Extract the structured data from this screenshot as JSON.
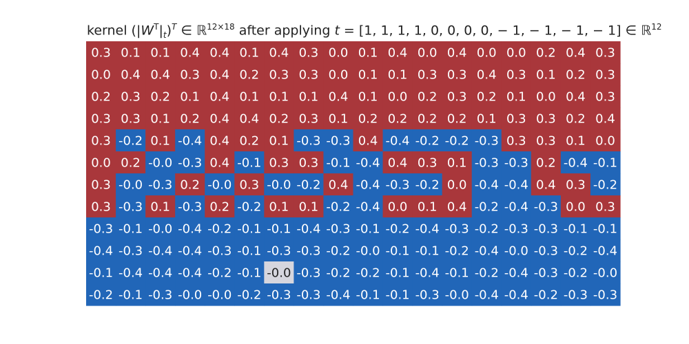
{
  "chart_data": {
    "type": "heatmap",
    "title_parts": {
      "prefix": "kernel (|",
      "w": "W",
      "w_sup": "T",
      "bar_sub": "t",
      "close": ")",
      "outer_sup": "T",
      "in1": " ∈ ",
      "R1": "ℝ",
      "dims": "12×18",
      "after": " after applying ",
      "t": "t",
      "eq": " = [1, 1, 1, 1, 0, 0, 0, 0, − 1, − 1, − 1, − 1] ∈ ",
      "R2": "ℝ",
      "dim2": "12"
    },
    "rows": 12,
    "cols": 18,
    "values": [
      [
        "0.3",
        "0.1",
        "0.1",
        "0.4",
        "0.4",
        "0.1",
        "0.4",
        "0.3",
        "0.0",
        "0.1",
        "0.4",
        "0.0",
        "0.4",
        "0.0",
        "0.0",
        "0.2",
        "0.4",
        "0.3"
      ],
      [
        "0.0",
        "0.4",
        "0.4",
        "0.3",
        "0.4",
        "0.2",
        "0.3",
        "0.3",
        "0.0",
        "0.1",
        "0.1",
        "0.3",
        "0.3",
        "0.4",
        "0.3",
        "0.1",
        "0.2",
        "0.3"
      ],
      [
        "0.2",
        "0.3",
        "0.2",
        "0.1",
        "0.4",
        "0.1",
        "0.1",
        "0.1",
        "0.4",
        "0.1",
        "0.0",
        "0.2",
        "0.3",
        "0.2",
        "0.1",
        "0.0",
        "0.4",
        "0.3"
      ],
      [
        "0.3",
        "0.3",
        "0.1",
        "0.2",
        "0.4",
        "0.4",
        "0.2",
        "0.3",
        "0.1",
        "0.2",
        "0.2",
        "0.2",
        "0.2",
        "0.1",
        "0.3",
        "0.3",
        "0.2",
        "0.4"
      ],
      [
        "0.3",
        "-0.2",
        "0.1",
        "-0.4",
        "0.4",
        "0.2",
        "0.1",
        "-0.3",
        "-0.3",
        "0.4",
        "-0.4",
        "-0.2",
        "-0.2",
        "-0.3",
        "0.3",
        "0.3",
        "0.1",
        "0.0"
      ],
      [
        "0.0",
        "0.2",
        "-0.0",
        "-0.3",
        "0.4",
        "-0.1",
        "0.3",
        "0.3",
        "-0.1",
        "-0.4",
        "0.4",
        "0.3",
        "0.1",
        "-0.3",
        "-0.3",
        "0.2",
        "-0.4",
        "-0.1"
      ],
      [
        "0.3",
        "-0.0",
        "-0.3",
        "0.2",
        "-0.0",
        "0.3",
        "-0.0",
        "-0.2",
        "0.4",
        "-0.4",
        "-0.3",
        "-0.2",
        "0.0",
        "-0.4",
        "-0.4",
        "0.4",
        "0.3",
        "-0.2"
      ],
      [
        "0.3",
        "-0.3",
        "0.1",
        "-0.3",
        "0.2",
        "-0.2",
        "0.1",
        "0.1",
        "-0.2",
        "-0.4",
        "0.0",
        "0.1",
        "0.4",
        "-0.2",
        "-0.4",
        "-0.3",
        "0.0",
        "0.3"
      ],
      [
        "-0.3",
        "-0.1",
        "-0.0",
        "-0.4",
        "-0.2",
        "-0.1",
        "-0.1",
        "-0.4",
        "-0.3",
        "-0.1",
        "-0.2",
        "-0.4",
        "-0.3",
        "-0.2",
        "-0.3",
        "-0.3",
        "-0.1",
        "-0.1"
      ],
      [
        "-0.4",
        "-0.3",
        "-0.4",
        "-0.4",
        "-0.3",
        "-0.1",
        "-0.3",
        "-0.3",
        "-0.2",
        "-0.0",
        "-0.1",
        "-0.1",
        "-0.2",
        "-0.4",
        "-0.0",
        "-0.3",
        "-0.2",
        "-0.4"
      ],
      [
        "-0.1",
        "-0.4",
        "-0.4",
        "-0.4",
        "-0.2",
        "-0.1",
        "-0.0",
        "-0.3",
        "-0.2",
        "-0.2",
        "-0.1",
        "-0.4",
        "-0.1",
        "-0.2",
        "-0.4",
        "-0.3",
        "-0.2",
        "-0.0"
      ],
      [
        "-0.2",
        "-0.1",
        "-0.3",
        "-0.0",
        "-0.0",
        "-0.2",
        "-0.3",
        "-0.3",
        "-0.4",
        "-0.1",
        "-0.1",
        "-0.3",
        "-0.0",
        "-0.4",
        "-0.4",
        "-0.2",
        "-0.3",
        "-0.3"
      ]
    ],
    "highlight_cells": [
      {
        "row": 10,
        "col": 6,
        "color": "#d6d6de",
        "text_color": "#222222"
      }
    ],
    "colors": {
      "positive": "#a9373b",
      "negative": "#2166b8",
      "cell_text": "#ffffff"
    },
    "grid": false,
    "legend": "none"
  }
}
